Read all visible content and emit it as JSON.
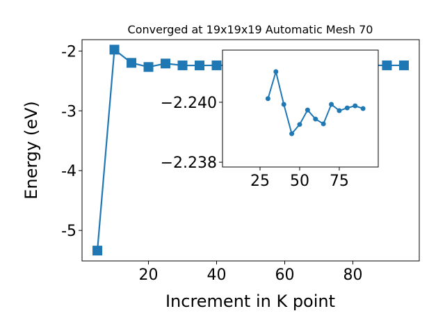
{
  "chart_data": [
    {
      "type": "line",
      "title": "Converged at 19x19x19 Automatic Mesh 70",
      "x_label": "Increment in K point",
      "y_label": "Energy (eV)",
      "x": [
        5,
        10,
        15,
        20,
        25,
        30,
        35,
        40,
        45,
        50,
        55,
        60,
        65,
        70,
        75,
        80,
        85,
        90,
        95
      ],
      "series": [
        {
          "color": "#1f77b4",
          "marker": "square",
          "values": [
            -5.337,
            -1.977,
            -2.198,
            -2.267,
            -2.209,
            -2.2401,
            -2.241,
            -2.2399,
            -2.239,
            -2.2393,
            -2.2397,
            -2.2394,
            -2.2393,
            -2.2399,
            -2.2397,
            -2.2398,
            -2.2399,
            -2.2398,
            -2.24
          ]
        }
      ],
      "xlim": [
        0.5,
        99.5
      ],
      "ylim": [
        -5.51,
        -1.81
      ],
      "xticks": [
        20,
        40,
        60,
        80
      ],
      "yticks": [
        -5,
        -4,
        -3,
        -2
      ]
    },
    {
      "type": "line",
      "x": [
        30,
        35,
        40,
        45,
        50,
        55,
        60,
        65,
        70,
        75,
        80,
        85,
        90
      ],
      "series": [
        {
          "color": "#1f77b4",
          "marker": "circle",
          "values": [
            -2.24012,
            -2.24102,
            -2.23993,
            -2.23895,
            -2.23926,
            -2.23974,
            -2.23944,
            -2.23928,
            -2.23993,
            -2.23972,
            -2.23981,
            -2.23988,
            -2.23979
          ]
        }
      ],
      "xlim": [
        1.3,
        99.6
      ],
      "ylim": [
        -2.23784,
        -2.24174
      ],
      "xticks": [
        25,
        50,
        75
      ],
      "yticks": [
        {
          "value": -2.24,
          "label": "−2.240"
        },
        {
          "value": -2.238,
          "label": "−2.238"
        }
      ]
    }
  ]
}
